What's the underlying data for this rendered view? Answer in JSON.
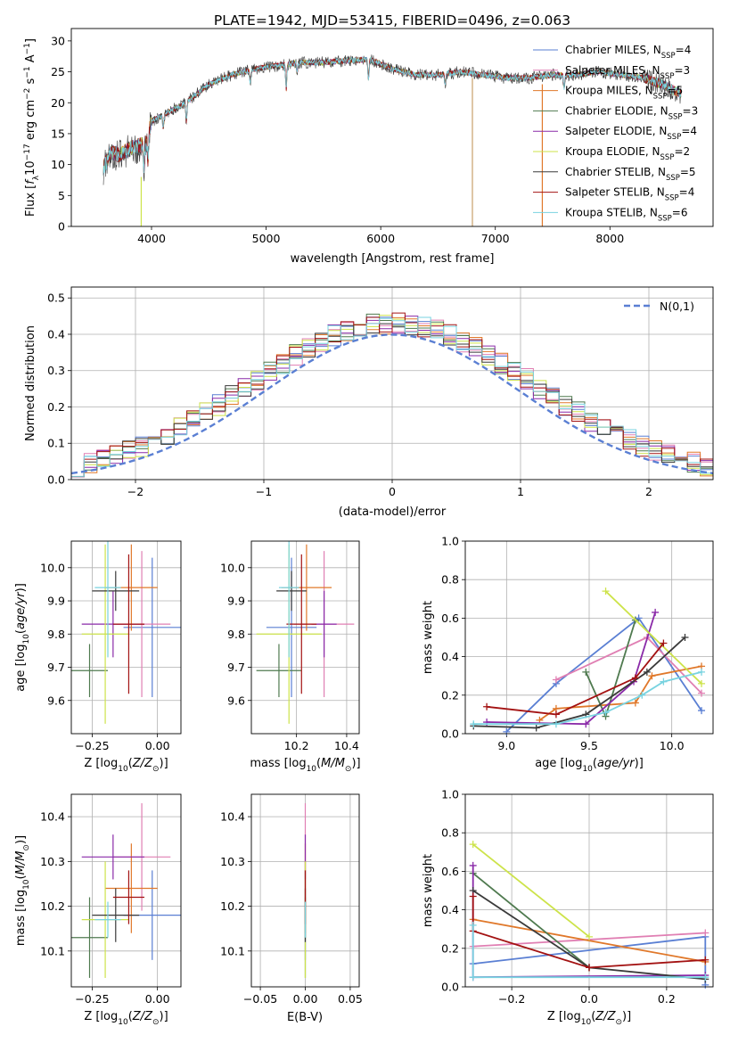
{
  "chart_data": [
    {
      "type": "line",
      "title": "PLATE=1942, MJD=53415, FIBERID=0496, z=0.063",
      "xlabel": "wavelength [Angstrom, rest frame]",
      "ylabel": "Flux [f_λ 10^-17 erg cm^-2 s^-1 A^-1]",
      "xlim": [
        3300,
        8900
      ],
      "ylim": [
        0,
        32
      ],
      "xticks": [
        4000,
        5000,
        6000,
        7000,
        8000
      ],
      "yticks": [
        0,
        5,
        10,
        15,
        20,
        25,
        30
      ],
      "grid": false,
      "legend_position": "top-right",
      "continuum": {
        "x": [
          3580,
          3650,
          3720,
          3800,
          3880,
          3950,
          4000,
          4100,
          4200,
          4300,
          4500,
          4700,
          4900,
          5100,
          5300,
          5500,
          5700,
          5900,
          6100,
          6300,
          6500,
          6700,
          6900,
          7100,
          7300,
          7500,
          7700,
          7900,
          8100,
          8300,
          8450,
          8560,
          8620
        ],
        "y": [
          9.5,
          12,
          11.5,
          12.5,
          13,
          13.5,
          17,
          18,
          19,
          20,
          23,
          24.5,
          25.5,
          26,
          26.5,
          26.5,
          26.8,
          27,
          25.5,
          24.5,
          24.5,
          25,
          24.5,
          24,
          24,
          24.5,
          24.5,
          25,
          24.5,
          24,
          23,
          22,
          21.5
        ]
      },
      "series": [
        {
          "name": "Chabrier MILES, N_SSP=4",
          "color": "#5a7fd3"
        },
        {
          "name": "Salpeter MILES, N_SSP=3",
          "color": "#e07fb3"
        },
        {
          "name": "Kroupa MILES, N_SSP=5",
          "color": "#e0782a"
        },
        {
          "name": "Chabrier ELODIE, N_SSP=3",
          "color": "#4f7a4f"
        },
        {
          "name": "Salpeter ELODIE, N_SSP=4",
          "color": "#8a2aa8"
        },
        {
          "name": "Kroupa ELODIE, N_SSP=2",
          "color": "#cde34a"
        },
        {
          "name": "Chabrier STELIB, N_SSP=5",
          "color": "#3a3a3a"
        },
        {
          "name": "Salpeter STELIB, N_SSP=4",
          "color": "#a31212"
        },
        {
          "name": "Kroupa STELIB, N_SSP=6",
          "color": "#78d3e0"
        }
      ],
      "legend_labels": [
        {
          "pre": "Chabrier MILES, N",
          "sub": "SSP",
          "post": "=4"
        },
        {
          "pre": "Salpeter MILES, N",
          "sub": "SSP",
          "post": "=3"
        },
        {
          "pre": "Kroupa MILES, N",
          "sub": "SSP",
          "post": "=5"
        },
        {
          "pre": "Chabrier ELODIE, N",
          "sub": "SSP",
          "post": "=3"
        },
        {
          "pre": "Salpeter ELODIE, N",
          "sub": "SSP",
          "post": "=4"
        },
        {
          "pre": "Kroupa ELODIE, N",
          "sub": "SSP",
          "post": "=2"
        },
        {
          "pre": "Chabrier STELIB, N",
          "sub": "SSP",
          "post": "=5"
        },
        {
          "pre": "Salpeter STELIB, N",
          "sub": "SSP",
          "post": "=4"
        },
        {
          "pre": "Kroupa STELIB, N",
          "sub": "SSP",
          "post": "=6"
        }
      ],
      "spikes": [
        {
          "x": 3910,
          "y_from": 8,
          "y_to": 0,
          "color": "#cde34a"
        },
        {
          "x": 6800,
          "y_from": 24,
          "y_to": 0,
          "color": "#c9a06a"
        },
        {
          "x": 7410,
          "y_from": 23,
          "y_to": 0,
          "color": "#e0782a"
        }
      ]
    },
    {
      "type": "bar",
      "xlabel": "(data-model)/error",
      "ylabel": "Normed distribution",
      "xlim": [
        -2.5,
        2.5
      ],
      "ylim": [
        0,
        0.53
      ],
      "xticks": [
        -2,
        -1,
        0,
        1,
        2
      ],
      "yticks": [
        0.0,
        0.1,
        0.2,
        0.3,
        0.4,
        0.5
      ],
      "grid": true,
      "legend_position": "top-right",
      "legend_label": "N(0,1)",
      "bin_width": 0.1,
      "gaussian": {
        "mean": 0,
        "sigma": 1,
        "color": "#5a7fd3",
        "style": "dashed"
      },
      "histogram_series": 9
    },
    {
      "type": "scatter",
      "xlabel": "Z [log10(Z/Z⊙)]",
      "ylabel": "age [log10(age/yr)]",
      "xlim": [
        -0.33,
        0.09
      ],
      "ylim": [
        9.5,
        10.08
      ],
      "xticks": [
        -0.25,
        0.0
      ],
      "yticks": [
        9.6,
        9.7,
        9.8,
        9.9,
        10.0
      ],
      "grid": true,
      "points": [
        {
          "series": "Chabrier MILES",
          "x": -0.02,
          "y": 9.82,
          "xerr": 0.11,
          "yerr": 0.21
        },
        {
          "series": "Salpeter MILES",
          "x": -0.06,
          "y": 9.83,
          "xerr": 0.11,
          "yerr": 0.22
        },
        {
          "series": "Kroupa MILES",
          "x": -0.1,
          "y": 9.94,
          "xerr": 0.1,
          "yerr": 0.13
        },
        {
          "series": "Chabrier ELODIE",
          "x": -0.26,
          "y": 9.69,
          "xerr": 0.07,
          "yerr": 0.08
        },
        {
          "series": "Salpeter ELODIE",
          "x": -0.17,
          "y": 9.83,
          "xerr": 0.12,
          "yerr": 0.1
        },
        {
          "series": "Kroupa ELODIE",
          "x": -0.2,
          "y": 9.8,
          "xerr": 0.09,
          "yerr": 0.27
        },
        {
          "series": "Chabrier STELIB",
          "x": -0.16,
          "y": 9.93,
          "xerr": 0.09,
          "yerr": 0.06
        },
        {
          "series": "Salpeter STELIB",
          "x": -0.11,
          "y": 9.83,
          "xerr": 0.06,
          "yerr": 0.21
        },
        {
          "series": "Kroupa STELIB",
          "x": -0.19,
          "y": 9.94,
          "xerr": 0.05,
          "yerr": 0.21
        }
      ]
    },
    {
      "type": "scatter",
      "xlabel": "mass [log10(M/M⊙)]",
      "ylabel": "",
      "xlim": [
        10.02,
        10.45
      ],
      "ylim": [
        9.5,
        10.08
      ],
      "xticks": [
        10.2,
        10.4
      ],
      "yticks": [
        9.6,
        9.7,
        9.8,
        9.9,
        10.0
      ],
      "grid": true,
      "points": [
        {
          "series": "Chabrier MILES",
          "x": 10.18,
          "y": 9.82,
          "xerr": 0.1,
          "yerr": 0.21
        },
        {
          "series": "Salpeter MILES",
          "x": 10.31,
          "y": 9.83,
          "xerr": 0.12,
          "yerr": 0.22
        },
        {
          "series": "Kroupa MILES",
          "x": 10.24,
          "y": 9.94,
          "xerr": 0.1,
          "yerr": 0.13
        },
        {
          "series": "Chabrier ELODIE",
          "x": 10.13,
          "y": 9.69,
          "xerr": 0.09,
          "yerr": 0.08
        },
        {
          "series": "Salpeter ELODIE",
          "x": 10.31,
          "y": 9.83,
          "xerr": 0.05,
          "yerr": 0.1
        },
        {
          "series": "Kroupa ELODIE",
          "x": 10.17,
          "y": 9.8,
          "xerr": 0.13,
          "yerr": 0.27
        },
        {
          "series": "Chabrier STELIB",
          "x": 10.18,
          "y": 9.93,
          "xerr": 0.06,
          "yerr": 0.06
        },
        {
          "series": "Salpeter STELIB",
          "x": 10.22,
          "y": 9.83,
          "xerr": 0.06,
          "yerr": 0.21
        },
        {
          "series": "Kroupa STELIB",
          "x": 10.17,
          "y": 9.94,
          "xerr": 0.04,
          "yerr": 0.21
        }
      ]
    },
    {
      "type": "line",
      "xlabel": "age [log10(age/yr)]",
      "ylabel": "mass weight",
      "xlim": [
        8.75,
        10.25
      ],
      "ylim": [
        0,
        1
      ],
      "xticks": [
        9.0,
        9.5,
        10.0
      ],
      "yticks": [
        0.0,
        0.2,
        0.4,
        0.6,
        0.8,
        1.0
      ],
      "grid": true,
      "series": [
        {
          "name": "Chabrier MILES",
          "x": [
            9.0,
            9.3,
            9.8,
            10.18
          ],
          "y": [
            0.01,
            0.26,
            0.6,
            0.12
          ]
        },
        {
          "name": "Salpeter MILES",
          "x": [
            9.3,
            9.85,
            10.18
          ],
          "y": [
            0.28,
            0.5,
            0.21
          ]
        },
        {
          "name": "Kroupa MILES",
          "x": [
            9.2,
            9.3,
            9.78,
            9.88,
            10.18
          ],
          "y": [
            0.07,
            0.13,
            0.16,
            0.3,
            0.35
          ]
        },
        {
          "name": "Chabrier ELODIE",
          "x": [
            9.48,
            9.6,
            9.78
          ],
          "y": [
            0.32,
            0.09,
            0.59
          ]
        },
        {
          "name": "Salpeter ELODIE",
          "x": [
            8.88,
            9.48,
            9.77,
            9.9
          ],
          "y": [
            0.06,
            0.05,
            0.27,
            0.63
          ]
        },
        {
          "name": "Kroupa ELODIE",
          "x": [
            9.6,
            10.18
          ],
          "y": [
            0.74,
            0.26
          ]
        },
        {
          "name": "Chabrier STELIB",
          "x": [
            8.8,
            9.18,
            9.48,
            9.85,
            10.08
          ],
          "y": [
            0.04,
            0.03,
            0.1,
            0.32,
            0.5
          ]
        },
        {
          "name": "Salpeter STELIB",
          "x": [
            8.88,
            9.3,
            9.78,
            9.95
          ],
          "y": [
            0.14,
            0.1,
            0.29,
            0.47
          ]
        },
        {
          "name": "Kroupa STELIB",
          "x": [
            8.8,
            9.3,
            9.6,
            9.82,
            9.95,
            10.18
          ],
          "y": [
            0.05,
            0.05,
            0.11,
            0.2,
            0.27,
            0.32
          ]
        }
      ]
    },
    {
      "type": "scatter",
      "xlabel": "Z [log10(Z/Z⊙)]",
      "ylabel": "mass [log10(M/M⊙)]",
      "xlim": [
        -0.33,
        0.09
      ],
      "ylim": [
        10.02,
        10.45
      ],
      "xticks": [
        -0.25,
        0.0
      ],
      "yticks": [
        10.1,
        10.2,
        10.3,
        10.4
      ],
      "grid": true,
      "points": [
        {
          "series": "Chabrier MILES",
          "x": -0.02,
          "y": 10.18,
          "xerr": 0.11,
          "yerr": 0.1
        },
        {
          "series": "Salpeter MILES",
          "x": -0.06,
          "y": 10.31,
          "xerr": 0.11,
          "yerr": 0.12
        },
        {
          "series": "Kroupa MILES",
          "x": -0.1,
          "y": 10.24,
          "xerr": 0.1,
          "yerr": 0.1
        },
        {
          "series": "Chabrier ELODIE",
          "x": -0.26,
          "y": 10.13,
          "xerr": 0.07,
          "yerr": 0.09
        },
        {
          "series": "Salpeter ELODIE",
          "x": -0.17,
          "y": 10.31,
          "xerr": 0.12,
          "yerr": 0.05
        },
        {
          "series": "Kroupa ELODIE",
          "x": -0.2,
          "y": 10.17,
          "xerr": 0.09,
          "yerr": 0.13
        },
        {
          "series": "Chabrier STELIB",
          "x": -0.16,
          "y": 10.18,
          "xerr": 0.09,
          "yerr": 0.06
        },
        {
          "series": "Salpeter STELIB",
          "x": -0.11,
          "y": 10.22,
          "xerr": 0.06,
          "yerr": 0.06
        },
        {
          "series": "Kroupa STELIB",
          "x": -0.19,
          "y": 10.17,
          "xerr": 0.05,
          "yerr": 0.04
        }
      ]
    },
    {
      "type": "scatter",
      "xlabel": "E(B-V)",
      "ylabel": "",
      "xlim": [
        -0.06,
        0.06
      ],
      "ylim": [
        10.02,
        10.45
      ],
      "xticks": [
        -0.05,
        0.0,
        0.05
      ],
      "yticks": [
        10.1,
        10.2,
        10.3,
        10.4
      ],
      "grid": true,
      "points": [
        {
          "series": "Chabrier MILES",
          "x": 0,
          "y": 10.18,
          "xerr": 0,
          "yerr": 0.1
        },
        {
          "series": "Salpeter MILES",
          "x": 0,
          "y": 10.31,
          "xerr": 0,
          "yerr": 0.12
        },
        {
          "series": "Kroupa MILES",
          "x": 0,
          "y": 10.24,
          "xerr": 0,
          "yerr": 0.1
        },
        {
          "series": "Chabrier ELODIE",
          "x": 0,
          "y": 10.13,
          "xerr": 0,
          "yerr": 0.09
        },
        {
          "series": "Salpeter ELODIE",
          "x": 0,
          "y": 10.31,
          "xerr": 0,
          "yerr": 0.05
        },
        {
          "series": "Kroupa ELODIE",
          "x": 0,
          "y": 10.17,
          "xerr": 0,
          "yerr": 0.13
        },
        {
          "series": "Chabrier STELIB",
          "x": 0,
          "y": 10.18,
          "xerr": 0,
          "yerr": 0.06
        },
        {
          "series": "Salpeter STELIB",
          "x": 0,
          "y": 10.22,
          "xerr": 0,
          "yerr": 0.06
        },
        {
          "series": "Kroupa STELIB",
          "x": 0,
          "y": 10.17,
          "xerr": 0,
          "yerr": 0.04
        }
      ]
    },
    {
      "type": "line",
      "xlabel": "Z [log10(Z/Z⊙)]",
      "ylabel": "mass weight",
      "xlim": [
        -0.32,
        0.32
      ],
      "ylim": [
        0,
        1
      ],
      "xticks": [
        -0.2,
        0.0,
        0.2
      ],
      "yticks": [
        0.0,
        0.2,
        0.4,
        0.6,
        0.8,
        1.0
      ],
      "grid": true,
      "series": [
        {
          "name": "Chabrier MILES",
          "x": [
            -0.3,
            0.3,
            0.3
          ],
          "y": [
            0.12,
            0.26,
            0.01
          ]
        },
        {
          "name": "Salpeter MILES",
          "x": [
            -0.3,
            0.3
          ],
          "y": [
            0.21,
            0.28
          ]
        },
        {
          "name": "Kroupa MILES",
          "x": [
            -0.3,
            0.3
          ],
          "y": [
            0.35,
            0.13
          ]
        },
        {
          "name": "Chabrier ELODIE",
          "x": [
            -0.3,
            0.0
          ],
          "y": [
            0.59,
            0.1
          ]
        },
        {
          "name": "Salpeter ELODIE",
          "x": [
            -0.3,
            -0.3,
            0.3
          ],
          "y": [
            0.63,
            0.05,
            0.06
          ]
        },
        {
          "name": "Kroupa ELODIE",
          "x": [
            -0.3,
            0.0
          ],
          "y": [
            0.74,
            0.26
          ]
        },
        {
          "name": "Chabrier STELIB",
          "x": [
            -0.3,
            0.0,
            0.3
          ],
          "y": [
            0.5,
            0.1,
            0.04
          ]
        },
        {
          "name": "Salpeter STELIB",
          "x": [
            -0.3,
            -0.3,
            0.0,
            0.3
          ],
          "y": [
            0.47,
            0.29,
            0.1,
            0.14
          ]
        },
        {
          "name": "Kroupa STELIB",
          "x": [
            -0.3,
            -0.3,
            0.3
          ],
          "y": [
            0.32,
            0.05,
            0.05
          ]
        }
      ]
    }
  ]
}
